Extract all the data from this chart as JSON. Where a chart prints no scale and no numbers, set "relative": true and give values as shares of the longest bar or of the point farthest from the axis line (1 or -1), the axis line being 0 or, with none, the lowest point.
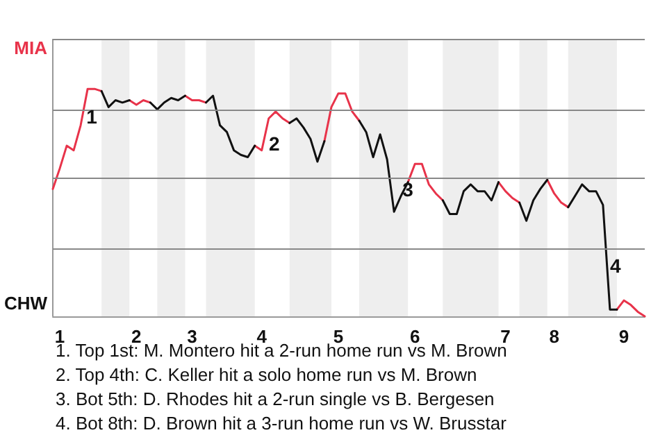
{
  "chart_data": {
    "type": "line",
    "relative": true,
    "categories": [
      null,
      "1",
      null,
      null,
      null,
      null,
      null,
      null,
      null,
      null,
      null,
      null,
      "2",
      null,
      null,
      null,
      null,
      null,
      null,
      null,
      "3",
      null,
      null,
      null,
      null,
      null,
      null,
      null,
      null,
      null,
      "4",
      null,
      null,
      null,
      null,
      null,
      null,
      null,
      null,
      null,
      null,
      "5",
      null,
      null,
      null,
      null,
      null,
      null,
      null,
      null,
      null,
      null,
      "6",
      null,
      null,
      null,
      null,
      null,
      null,
      null,
      null,
      null,
      null,
      null,
      null,
      "7",
      null,
      null,
      null,
      null,
      null,
      null,
      "8",
      null,
      null,
      null,
      null,
      null,
      null,
      null,
      null,
      null,
      "9",
      null,
      null,
      null
    ],
    "grid": false,
    "marker": "none",
    "series": [
      {
        "color": "#e8334a",
        "values": [
          0.56,
          0.65,
          0.75,
          0.73,
          0.84,
          1,
          1,
          0.99,
          null,
          null,
          null,
          0.95,
          0.93,
          0.95,
          0.94,
          null,
          null,
          null,
          null,
          0.97,
          0.95,
          0.95,
          0.94,
          null,
          null,
          null,
          null,
          null,
          null,
          0.75,
          0.73,
          0.87,
          0.9,
          0.87,
          0.85,
          null,
          null,
          null,
          null,
          0.77,
          0.92,
          0.98,
          0.98,
          0.9,
          0.86,
          null,
          null,
          null,
          null,
          null,
          null,
          0.59,
          0.67,
          0.67,
          0.58,
          0.54,
          0.51,
          null,
          null,
          null,
          null,
          null,
          null,
          null,
          0.59,
          0.55,
          0.52,
          0.5,
          null,
          null,
          null,
          0.6,
          0.54,
          0.5,
          0.48,
          null,
          null,
          null,
          null,
          null,
          null,
          0.03,
          0.07,
          0.05,
          0.02,
          0
        ]
      },
      {
        "color": "#111111",
        "values": [
          null,
          null,
          null,
          null,
          null,
          null,
          null,
          0.99,
          0.92,
          0.95,
          0.94,
          0.95,
          null,
          null,
          0.94,
          0.91,
          0.94,
          0.96,
          0.95,
          0.97,
          null,
          null,
          0.94,
          0.97,
          0.84,
          0.81,
          0.73,
          0.71,
          0.7,
          0.75,
          null,
          null,
          null,
          null,
          0.85,
          0.87,
          0.83,
          0.78,
          0.68,
          0.77,
          null,
          null,
          null,
          null,
          0.86,
          0.81,
          0.7,
          0.8,
          0.69,
          0.46,
          0.53,
          0.59,
          null,
          null,
          null,
          null,
          0.51,
          0.45,
          0.45,
          0.55,
          0.58,
          0.55,
          0.55,
          0.51,
          0.59,
          null,
          null,
          0.5,
          0.42,
          0.51,
          0.56,
          0.6,
          null,
          null,
          0.48,
          0.53,
          0.58,
          0.55,
          0.55,
          0.49,
          0.03,
          0.03,
          null,
          null,
          null,
          null
        ]
      }
    ],
    "ref_lines": [
      {
        "axis": "y",
        "value": 0.3,
        "color": "#888888"
      },
      {
        "axis": "y",
        "value": 0.61,
        "color": "#888888"
      },
      {
        "axis": "y",
        "value": 0.91,
        "color": "#888888"
      },
      {
        "axis": "y",
        "value": 1.22,
        "color": "#888888"
      }
    ],
    "annotations": [
      "MIA",
      "CHW",
      "1",
      "2",
      "3",
      "4",
      "1. Top 1st: M. Montero hit a 2-run home run vs M. Brown",
      "2. Top 4th: C. Keller hit a solo home run vs M. Brown",
      "3. Bot 5th: D. Rhodes hit a 2-run single vs B. Bergesen",
      "4. Bot 8th: D. Brown hit a 3-run home run vs W. Brusstar"
    ]
  }
}
